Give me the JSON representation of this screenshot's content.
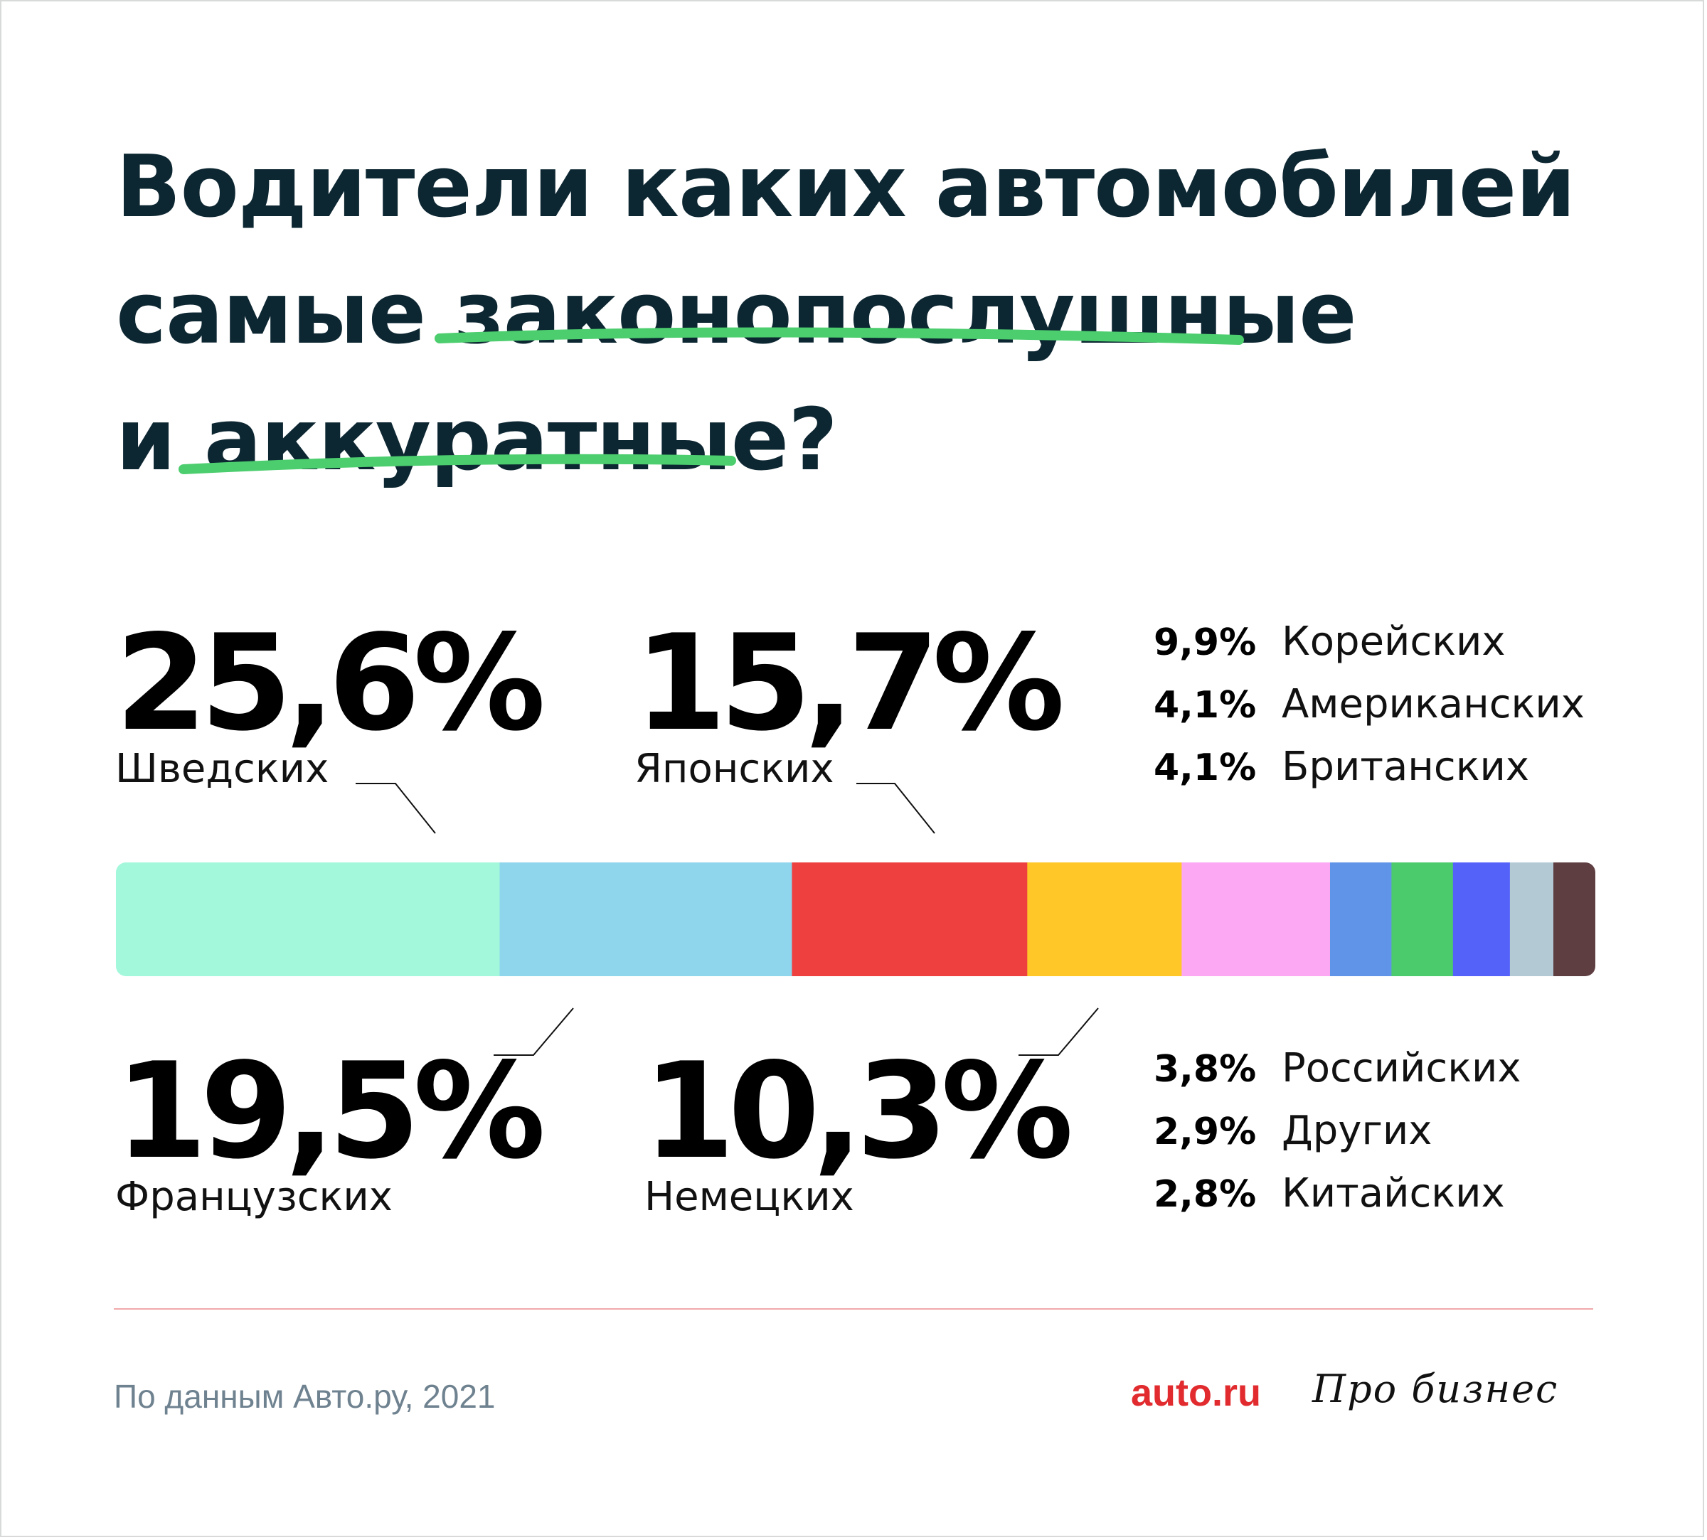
{
  "title": {
    "line1": "Водители каких автомобилей",
    "line2_prefix": "самые ",
    "line2_highlight": "законопослушные",
    "line3_prefix": "и ",
    "line3_highlight": "аккуратные",
    "line3_suffix": "?",
    "highlight_color": "#4ccd6e"
  },
  "callouts": {
    "top_left": {
      "value": "25,6%",
      "label": "Шведских"
    },
    "top_mid": {
      "value": "15,7%",
      "label": "Японских"
    },
    "bottom_left": {
      "value": "19,5%",
      "label": "Французских"
    },
    "bottom_mid": {
      "value": "10,3%",
      "label": "Немецких"
    }
  },
  "small_list_top": [
    {
      "value": "9,9%",
      "label": "Корейских"
    },
    {
      "value": "4,1%",
      "label": "Американских"
    },
    {
      "value": "4,1%",
      "label": "Британских"
    }
  ],
  "small_list_bottom": [
    {
      "value": "3,8%",
      "label": "Российских"
    },
    {
      "value": "2,9%",
      "label": "Других"
    },
    {
      "value": "2,8%",
      "label": "Китайских"
    }
  ],
  "chart_data": {
    "type": "bar",
    "subtype": "stacked-horizontal-100",
    "title": "Водители каких автомобилей самые законопослушные и аккуратные?",
    "unit": "%",
    "segments": [
      {
        "name": "Шведских",
        "value": 25.6,
        "color": "#a3f8dc"
      },
      {
        "name": "Французских",
        "value": 19.5,
        "color": "#8fd5eb"
      },
      {
        "name": "Японских",
        "value": 15.7,
        "color": "#ef4040"
      },
      {
        "name": "Немецких",
        "value": 10.3,
        "color": "#ffc727"
      },
      {
        "name": "Корейских",
        "value": 9.9,
        "color": "#fca8f2"
      },
      {
        "name": "Американских",
        "value": 4.1,
        "color": "#6094e8"
      },
      {
        "name": "Британских",
        "value": 4.1,
        "color": "#4ccb6d"
      },
      {
        "name": "Российских",
        "value": 3.8,
        "color": "#5562fa"
      },
      {
        "name": "Других",
        "value": 2.9,
        "color": "#b3cad5"
      },
      {
        "name": "Китайских",
        "value": 2.8,
        "color": "#5f3e42"
      }
    ]
  },
  "footer": {
    "source": "По данным Авто.ру, 2021",
    "logo_auto": "auto.ru",
    "logo_pro": "Про бизнес",
    "divider_color": "#f0a9ab"
  }
}
